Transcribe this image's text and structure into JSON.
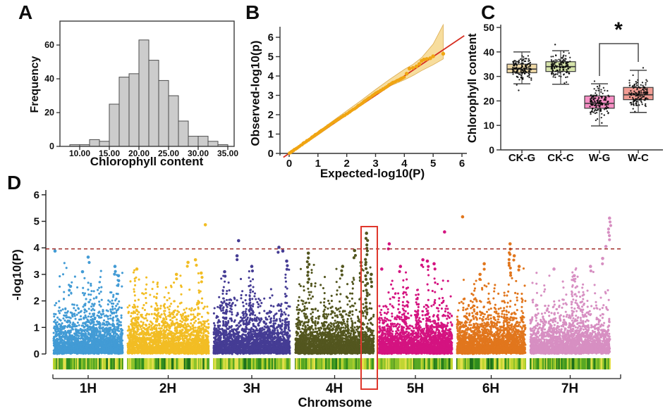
{
  "panels": {
    "a": {
      "letter": "A",
      "xlabel": "Chlorophyll content",
      "ylabel": "Frequency"
    },
    "b": {
      "letter": "B",
      "xlabel": "Expected-log10(P)",
      "ylabel": "Observed-log10(p)"
    },
    "c": {
      "letter": "C",
      "ylabel": "Chlorophyll content",
      "categories": [
        "CK-G",
        "CK-C",
        "W-G",
        "W-C"
      ],
      "significance_label": "*"
    },
    "d": {
      "letter": "D",
      "xlabel": "Chromsome",
      "ylabel": "-log10(P)",
      "chromosome_labels": [
        "1H",
        "2H",
        "3H",
        "4H",
        "5H",
        "6H",
        "7H"
      ]
    }
  },
  "chart_data": [
    {
      "id": "A",
      "type": "bar",
      "title": "",
      "xlabel": "Chlorophyll content",
      "ylabel": "Frequency",
      "bins_start": 8.33,
      "bin_width": 1.667,
      "values": [
        1,
        1,
        4,
        3,
        25,
        41,
        43,
        63,
        51,
        39,
        30,
        15,
        6,
        6,
        3,
        1
      ],
      "xticks": [
        {
          "v": 10,
          "label": "10.00"
        },
        {
          "v": 15,
          "label": "15.00"
        },
        {
          "v": 20,
          "label": "20.00"
        },
        {
          "v": 25,
          "label": "25.00"
        },
        {
          "v": 30,
          "label": "30.00"
        },
        {
          "v": 35,
          "label": "35.00"
        }
      ],
      "yticks": [
        0,
        20,
        40,
        60
      ],
      "xlim": [
        6.7,
        35.5
      ],
      "ylim": [
        0,
        74
      ],
      "bar_fill": "#cccccc",
      "bar_stroke": "#4d4d4d",
      "frame_color": "#3d3d3d"
    },
    {
      "id": "B",
      "type": "scatter",
      "xlabel": "Expected-log10(P)",
      "ylabel": "Observed-log10(p)",
      "xticks": [
        0,
        1,
        2,
        3,
        4,
        5,
        6
      ],
      "yticks": [
        0,
        1,
        2,
        3,
        4,
        5,
        6
      ],
      "xlim": [
        0,
        6
      ],
      "ylim": [
        0,
        6.8
      ],
      "dot_color": "#f0a513",
      "curve": [
        [
          0,
          0
        ],
        [
          0.5,
          0.52
        ],
        [
          1,
          1.05
        ],
        [
          1.5,
          1.57
        ],
        [
          2,
          2.04
        ],
        [
          2.5,
          2.56
        ],
        [
          3,
          3.1
        ],
        [
          3.3,
          3.36
        ],
        [
          3.6,
          3.66
        ],
        [
          3.8,
          3.78
        ],
        [
          4,
          3.96
        ]
      ],
      "points_high": [
        [
          4.08,
          4.12
        ],
        [
          4.18,
          4.38
        ],
        [
          4.3,
          4.42
        ],
        [
          4.42,
          4.5
        ],
        [
          4.52,
          4.62
        ],
        [
          4.6,
          4.78
        ],
        [
          4.68,
          4.85
        ],
        [
          4.78,
          4.88
        ],
        [
          4.9,
          4.92
        ],
        [
          5.0,
          5.02
        ],
        [
          5.35,
          5.15
        ]
      ],
      "band": {
        "x": [
          0,
          0.5,
          1,
          1.5,
          2,
          2.5,
          3,
          3.5,
          4,
          4.3,
          4.6,
          5,
          5.35
        ],
        "upper": [
          0.06,
          0.58,
          1.12,
          1.66,
          2.2,
          2.74,
          3.3,
          3.84,
          4.34,
          4.6,
          4.95,
          5.65,
          6.65
        ],
        "lower": [
          -0.06,
          0.44,
          0.95,
          1.47,
          1.98,
          2.48,
          2.98,
          3.48,
          3.8,
          4.02,
          4.28,
          4.58,
          4.88
        ],
        "fill": "#f6d992",
        "stroke": "#dcab4e"
      },
      "identity_line": {
        "color": "#d62d20",
        "from": -0.2,
        "to": 6.08
      }
    },
    {
      "id": "C",
      "type": "box",
      "ylabel": "Chlorophyll content",
      "yticks": [
        0,
        10,
        20,
        30,
        40,
        50
      ],
      "ylim": [
        0,
        50
      ],
      "categories": [
        "CK-G",
        "CK-C",
        "W-G",
        "W-C"
      ],
      "boxes": [
        {
          "label": "CK-G",
          "fill": "#efd9a7",
          "whisker_low": 27,
          "q1": 31.5,
          "median": 33,
          "q3": 35,
          "whisker_high": 40,
          "mean": 33.2,
          "sd": 2.3,
          "n": 135,
          "extra_points": [
            24.3
          ]
        },
        {
          "label": "CK-C",
          "fill": "#d7e5ab",
          "whisker_low": 26.8,
          "q1": 32,
          "median": 34,
          "q3": 36,
          "whisker_high": 40.5,
          "mean": 34,
          "sd": 2.3,
          "n": 135,
          "extra_points": [
            43
          ]
        },
        {
          "label": "W-G",
          "fill": "#f78fc5",
          "whisker_low": 9.8,
          "q1": 17,
          "median": 19,
          "q3": 22,
          "whisker_high": 27,
          "mean": 19.6,
          "sd": 2.8,
          "n": 135,
          "extra_points": [
            11,
            12.6,
            14.2
          ]
        },
        {
          "label": "W-C",
          "fill": "#f19c93",
          "whisker_low": 15.3,
          "q1": 20.5,
          "median": 22.5,
          "q3": 25.5,
          "whisker_high": 32.5,
          "mean": 23,
          "sd": 3,
          "n": 135,
          "extra_points": [
            33.5,
            15.6
          ]
        }
      ],
      "significance": {
        "between": [
          "W-G",
          "W-C"
        ],
        "label": "*",
        "bracket_color": "#4a4a4a"
      }
    },
    {
      "id": "D",
      "type": "manhattan",
      "xlabel": "Chromsome",
      "ylabel": "-log10(P)",
      "yticks": [
        0,
        1,
        2,
        3,
        4,
        5,
        6
      ],
      "ylim": [
        0,
        6
      ],
      "threshold": {
        "value": 4,
        "color": "#9a1f1a"
      },
      "highlight_box": {
        "chromosome": "4H",
        "color": "#e0372c"
      },
      "chromosomes": [
        {
          "name": "1H",
          "color": "#429bd5",
          "peaks": [
            [
              0.03,
              3.88,
              1
            ],
            [
              0.5,
              3.65,
              2
            ],
            [
              0.42,
              3.1,
              1
            ],
            [
              0.88,
              3.3,
              3
            ],
            [
              0.93,
              2.95,
              2
            ],
            [
              0.25,
              2.55,
              2
            ]
          ]
        },
        {
          "name": "2H",
          "color": "#f2bd24",
          "peaks": [
            [
              0.95,
              4.87,
              1
            ],
            [
              0.83,
              3.55,
              2
            ],
            [
              0.74,
              3.45,
              2
            ],
            [
              0.12,
              3.2,
              1
            ],
            [
              0.6,
              3.0,
              2
            ],
            [
              0.9,
              3.05,
              3
            ]
          ]
        },
        {
          "name": "3H",
          "color": "#453c94",
          "peaks": [
            [
              0.33,
              4.27,
              1
            ],
            [
              0.31,
              3.7,
              2
            ],
            [
              0.85,
              4.02,
              2
            ],
            [
              0.9,
              3.88,
              1
            ],
            [
              0.5,
              3.3,
              2
            ],
            [
              0.15,
              3.1,
              2
            ],
            [
              0.95,
              3.5,
              3
            ]
          ]
        },
        {
          "name": "4H",
          "color": "#53561f",
          "peaks": [
            [
              0.9,
              4.55,
              24
            ],
            [
              0.17,
              3.8,
              9
            ],
            [
              0.75,
              3.9,
              3
            ],
            [
              0.6,
              3.3,
              3
            ],
            [
              0.83,
              3.45,
              6
            ],
            [
              0.96,
              3.0,
              4
            ]
          ]
        },
        {
          "name": "5H",
          "color": "#d41380",
          "peaks": [
            [
              0.15,
              4.15,
              2
            ],
            [
              0.89,
              4.6,
              1
            ],
            [
              0.6,
              3.55,
              2
            ],
            [
              0.66,
              3.5,
              2
            ],
            [
              0.3,
              3.3,
              2
            ],
            [
              0.75,
              3.4,
              2
            ],
            [
              0.05,
              3.2,
              1
            ]
          ]
        },
        {
          "name": "6H",
          "color": "#e1761d",
          "peaks": [
            [
              0.09,
              5.17,
              1
            ],
            [
              0.77,
              4.15,
              10
            ],
            [
              0.83,
              3.7,
              2
            ],
            [
              0.4,
              3.4,
              2
            ],
            [
              0.34,
              3.0,
              2
            ],
            [
              0.9,
              3.3,
              2
            ]
          ]
        },
        {
          "name": "7H",
          "color": "#d78fc2",
          "peaks": [
            [
              0.985,
              5.12,
              7
            ],
            [
              0.94,
              4.05,
              1
            ],
            [
              0.9,
              3.6,
              2
            ],
            [
              0.75,
              3.3,
              2
            ],
            [
              0.3,
              3.2,
              1
            ],
            [
              0.55,
              2.95,
              2
            ]
          ]
        }
      ],
      "density_palette": [
        "#1c6f1a",
        "#2f8c1e",
        "#57a823",
        "#8cc22a",
        "#c0d531",
        "#e3e04b"
      ]
    }
  ]
}
